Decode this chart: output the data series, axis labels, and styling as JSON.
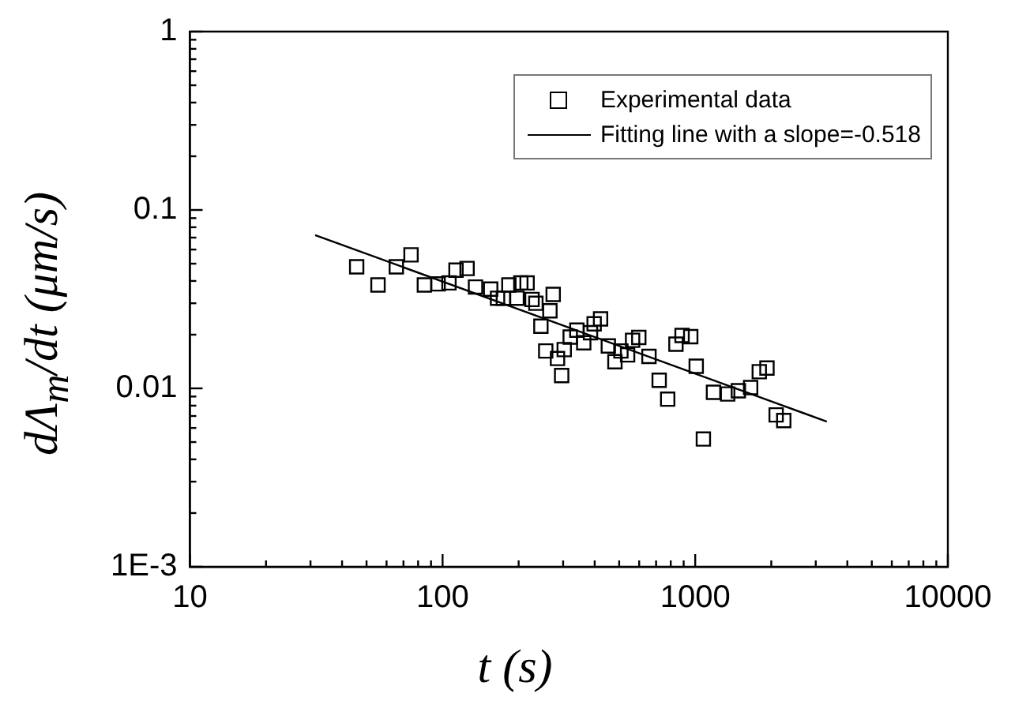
{
  "chart_data": {
    "type": "scatter",
    "xlabel": "t  (s)",
    "ylabel": "dΛ$_{m}$/dt  (μm/s)",
    "log": "xy",
    "xlim": [
      10,
      10000
    ],
    "ylim": [
      0.001,
      1
    ],
    "xticks": [
      10,
      {
        "value": 20,
        "label": null
      },
      {
        "value": 30,
        "label": null
      },
      {
        "value": 40,
        "label": null
      },
      {
        "value": 50,
        "label": null
      },
      {
        "value": 60,
        "label": null
      },
      {
        "value": 70,
        "label": null
      },
      {
        "value": 80,
        "label": null
      },
      {
        "value": 90,
        "label": null
      },
      100,
      {
        "value": 200,
        "label": null
      },
      {
        "value": 300,
        "label": null
      },
      {
        "value": 400,
        "label": null
      },
      {
        "value": 500,
        "label": null
      },
      {
        "value": 600,
        "label": null
      },
      {
        "value": 700,
        "label": null
      },
      {
        "value": 800,
        "label": null
      },
      {
        "value": 900,
        "label": null
      },
      1000,
      {
        "value": 2000,
        "label": null
      },
      {
        "value": 3000,
        "label": null
      },
      {
        "value": 4000,
        "label": null
      },
      {
        "value": 5000,
        "label": null
      },
      {
        "value": 6000,
        "label": null
      },
      {
        "value": 7000,
        "label": null
      },
      {
        "value": 8000,
        "label": null
      },
      {
        "value": 9000,
        "label": null
      },
      10000
    ],
    "yticks": [
      {
        "value": 0.001,
        "label": "1E-3"
      },
      {
        "value": 0.002,
        "label": null
      },
      {
        "value": 0.003,
        "label": null
      },
      {
        "value": 0.004,
        "label": null
      },
      {
        "value": 0.005,
        "label": null
      },
      {
        "value": 0.006,
        "label": null
      },
      {
        "value": 0.007,
        "label": null
      },
      {
        "value": 0.008,
        "label": null
      },
      {
        "value": 0.009,
        "label": null
      },
      0.01,
      {
        "value": 0.02,
        "label": null
      },
      {
        "value": 0.03,
        "label": null
      },
      {
        "value": 0.04,
        "label": null
      },
      {
        "value": 0.05,
        "label": null
      },
      {
        "value": 0.06,
        "label": null
      },
      {
        "value": 0.07,
        "label": null
      },
      {
        "value": 0.08,
        "label": null
      },
      {
        "value": 0.09,
        "label": null
      },
      0.1,
      {
        "value": 0.2,
        "label": null
      },
      {
        "value": 0.3,
        "label": null
      },
      {
        "value": 0.4,
        "label": null
      },
      {
        "value": 0.5,
        "label": null
      },
      {
        "value": 0.6,
        "label": null
      },
      {
        "value": 0.7,
        "label": null
      },
      {
        "value": 0.8,
        "label": null
      },
      {
        "value": 0.9,
        "label": null
      },
      1
    ],
    "grid": false,
    "legend": "top right",
    "series": [
      {
        "name": "Experimental data",
        "marker": "square",
        "color": "#000000",
        "x": [
          45.7,
          55.5,
          65.6,
          75,
          84.7,
          96,
          106,
          113,
          125,
          135,
          155,
          165,
          174,
          183,
          197,
          204,
          216,
          226,
          234,
          245,
          256,
          266,
          274,
          285,
          296,
          303,
          320,
          340,
          362,
          385,
          398,
          422,
          453,
          481,
          508,
          540,
          565,
          598,
          656,
          720,
          778,
          839,
          887,
          960,
          1009,
          1077,
          1181,
          1344,
          1482,
          1657,
          1793,
          1923,
          2091,
          2241
        ],
        "values": [
          0.048,
          0.038,
          0.048,
          0.056,
          0.038,
          0.0385,
          0.039,
          0.046,
          0.047,
          0.037,
          0.036,
          0.032,
          0.032,
          0.038,
          0.032,
          0.039,
          0.039,
          0.0315,
          0.03,
          0.0223,
          0.0162,
          0.0272,
          0.0336,
          0.0147,
          0.0118,
          0.0165,
          0.0194,
          0.0212,
          0.018,
          0.0205,
          0.023,
          0.0245,
          0.0173,
          0.0141,
          0.0162,
          0.0154,
          0.0186,
          0.0193,
          0.0151,
          0.0111,
          0.0087,
          0.0177,
          0.0198,
          0.0195,
          0.0133,
          0.0052,
          0.0095,
          0.0093,
          0.0097,
          0.0101,
          0.0124,
          0.013,
          0.0071,
          0.0066
        ]
      },
      {
        "name": "Fitting line with a slope=-0.518",
        "type": "line",
        "marker": "none",
        "color": "#000000",
        "x": [
          31.3,
          3319
        ],
        "values": [
          0.0723,
          0.00651
        ]
      }
    ]
  }
}
